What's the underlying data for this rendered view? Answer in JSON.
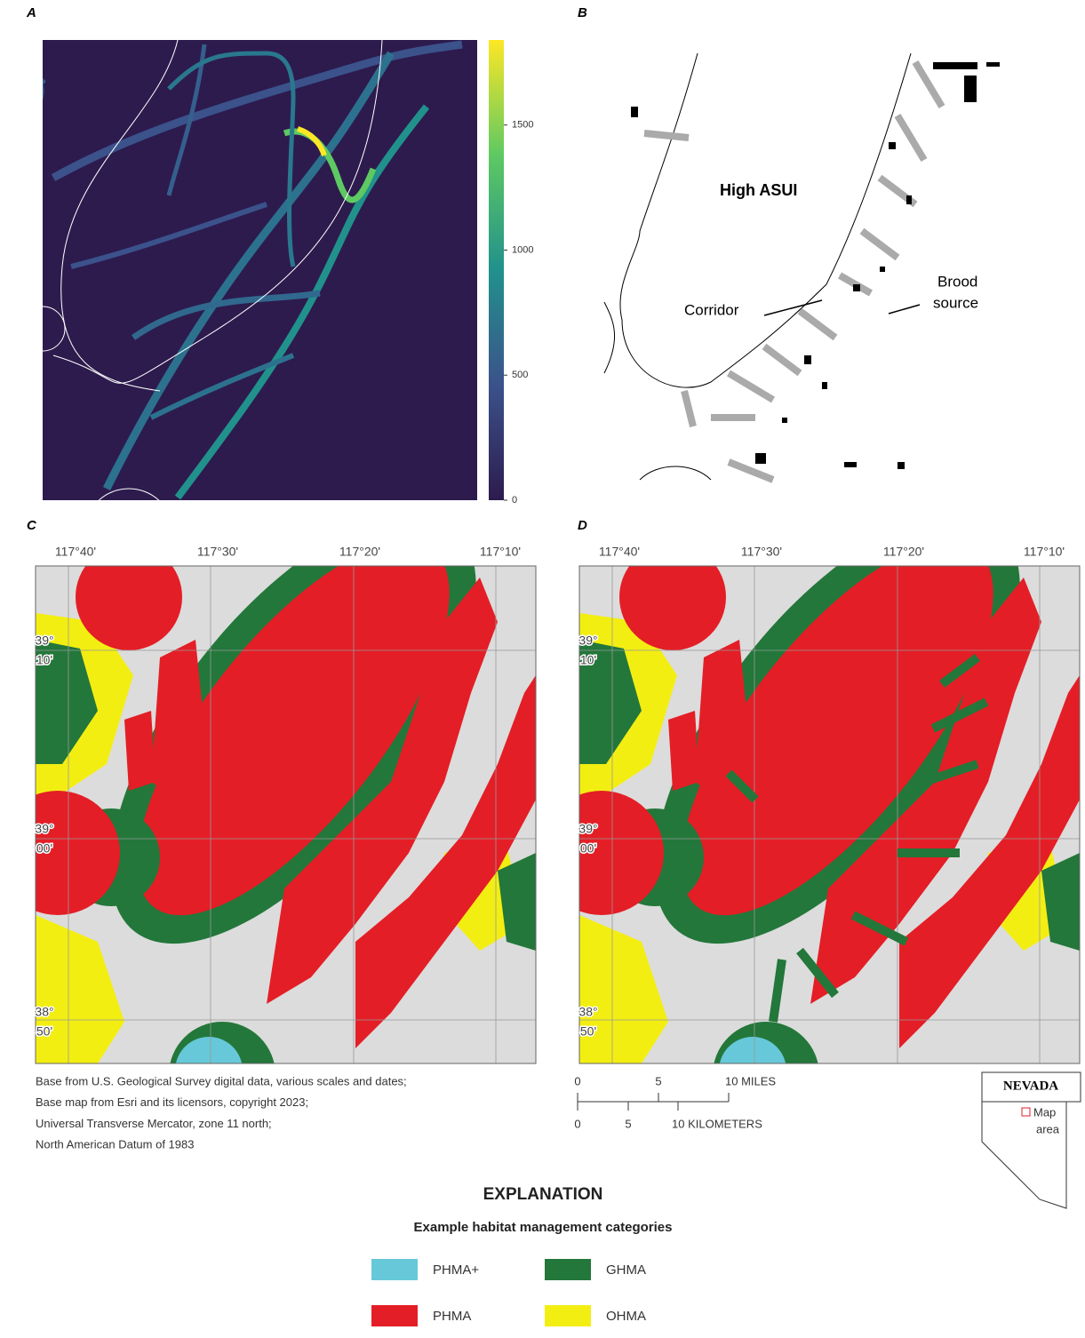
{
  "panels": {
    "a": {
      "label": "A",
      "colorbar": {
        "lim": [
          0,
          1840
        ],
        "ticks": [
          0,
          500,
          1000,
          1500
        ]
      }
    },
    "b": {
      "label": "B",
      "region_label": "High ASUI",
      "corridor_label": "Corridor",
      "brood_label": [
        "Brood",
        "source"
      ]
    },
    "c": {
      "label": "C"
    },
    "d": {
      "label": "D"
    }
  },
  "coordinates": {
    "longitude": [
      "117°40'",
      "117°30'",
      "117°20'",
      "117°10'"
    ],
    "latitude": [
      {
        "deg": "39°",
        "min": "10'"
      },
      {
        "deg": "39°",
        "min": "00'"
      },
      {
        "deg": "38°",
        "min": "50'"
      }
    ]
  },
  "credits": [
    "Base from U.S. Geological Survey digital data, various scales and dates;",
    "Base map from Esri and its licensors, copyright 2023;",
    "Universal Transverse Mercator, zone 11 north;",
    "North American Datum of 1983"
  ],
  "scale_bar": {
    "miles": [
      "0",
      "5",
      "10 MILES"
    ],
    "kilometers": [
      "0",
      "5",
      "10 KILOMETERS"
    ]
  },
  "inset": {
    "state": "NEVADA",
    "marker_label": [
      "Map",
      "area"
    ]
  },
  "explanation": {
    "title": "EXPLANATION",
    "subtitle": "Example habitat management categories",
    "items": [
      {
        "name": "PHMA+",
        "color": "#66c8d8"
      },
      {
        "name": "GHMA",
        "color": "#23773a"
      },
      {
        "name": "PHMA",
        "color": "#e41e26"
      },
      {
        "name": "OHMA",
        "color": "#f3ee12"
      }
    ]
  }
}
